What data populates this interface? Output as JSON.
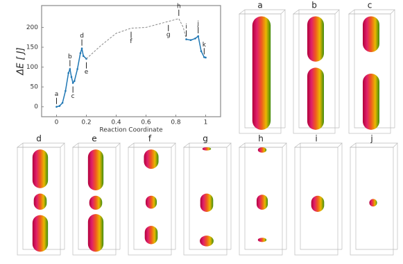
{
  "chart_data": {
    "type": "line",
    "x_label": "Reaction Coordinate",
    "y_label": "ΔE [ J]",
    "xlim": [
      -0.1,
      1.1
    ],
    "ylim": [
      -25,
      255
    ],
    "xticks": [
      0,
      0.2,
      0.4,
      0.6,
      0.8,
      1
    ],
    "yticks": [
      0,
      50,
      100,
      150,
      200
    ],
    "series": [
      {
        "color": "#1f77b4",
        "style": "solid",
        "x": [
          0,
          0.02,
          0.04,
          0.06,
          0.08,
          0.09,
          0.1,
          0.11,
          0.12,
          0.14,
          0.16,
          0.17,
          0.18,
          0.2
        ],
        "values": [
          0,
          2,
          10,
          40,
          85,
          95,
          75,
          60,
          65,
          95,
          135,
          147,
          128,
          121
        ]
      },
      {
        "color": "#888888",
        "style": "dashed",
        "x": [
          0.2,
          0.3,
          0.4,
          0.5,
          0.6,
          0.7,
          0.75,
          0.8,
          0.82,
          0.85,
          0.87
        ],
        "values": [
          121,
          155,
          185,
          198,
          200,
          210,
          215,
          220,
          222,
          200,
          170
        ]
      },
      {
        "color": "#1f77b4",
        "style": "solid",
        "x": [
          0.87,
          0.9,
          0.93,
          0.95,
          0.97,
          0.99,
          1.0
        ],
        "values": [
          170,
          168,
          172,
          178,
          140,
          125,
          124
        ]
      }
    ],
    "annotations": [
      {
        "text": "a",
        "x": 0,
        "y": 0
      },
      {
        "text": "b",
        "x": 0.09,
        "y": 95
      },
      {
        "text": "c",
        "x": 0.11,
        "y": 60
      },
      {
        "text": "d",
        "x": 0.17,
        "y": 147
      },
      {
        "text": "e",
        "x": 0.2,
        "y": 121
      },
      {
        "text": "f",
        "x": 0.5,
        "y": 198
      },
      {
        "text": "g",
        "x": 0.75,
        "y": 215
      },
      {
        "text": "h",
        "x": 0.82,
        "y": 222
      },
      {
        "text": "i",
        "x": 0.87,
        "y": 170
      },
      {
        "text": "j",
        "x": 0.95,
        "y": 178
      },
      {
        "text": "k",
        "x": 0.99,
        "y": 125
      }
    ]
  },
  "panels": [
    {
      "label": "a"
    },
    {
      "label": "b"
    },
    {
      "label": "c"
    },
    {
      "label": "d"
    },
    {
      "label": "e"
    },
    {
      "label": "f"
    },
    {
      "label": "g"
    },
    {
      "label": "h"
    },
    {
      "label": "i"
    },
    {
      "label": "j"
    }
  ]
}
